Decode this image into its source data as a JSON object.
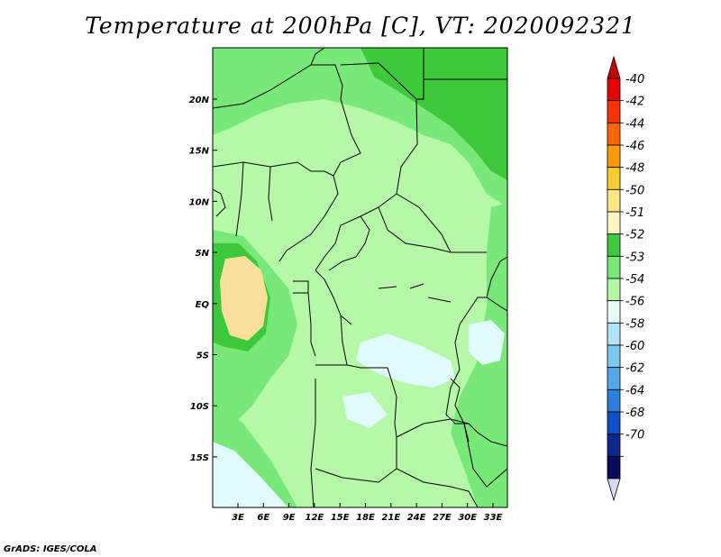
{
  "title": "Temperature at 200hPa [C], VT: 2020092321",
  "credit": "GrADS: IGES/COLA",
  "map": {
    "lat_labels": [
      "20N",
      "15N",
      "10N",
      "5N",
      "EQ",
      "5S",
      "10S",
      "15S"
    ],
    "lon_labels": [
      "3E",
      "6E",
      "9E",
      "12E",
      "15E",
      "18E",
      "21E",
      "24E",
      "27E",
      "30E",
      "33E"
    ],
    "colors": {
      "c52": "#3ec83c",
      "c53": "#78e878",
      "c54": "#b4f8a8",
      "c51": "#fae09a",
      "c56": "#e0fcfc",
      "border": "#000000"
    }
  },
  "colorbar": {
    "labels": [
      "-40",
      "-42",
      "-44",
      "-46",
      "-48",
      "-50",
      "-51",
      "-52",
      "-53",
      "-54",
      "-56",
      "-58",
      "-60",
      "-62",
      "-64",
      "-68",
      "-70"
    ],
    "colors": [
      "#e60000",
      "#ff3300",
      "#ff6600",
      "#ff9900",
      "#ffcc33",
      "#ffe680",
      "#fff8c0",
      "#3ec83c",
      "#78e878",
      "#b4f8a8",
      "#e8fcf8",
      "#b0e4f8",
      "#7ac8f0",
      "#50a8e8",
      "#2a80e0",
      "#1050c8",
      "#0a2890",
      "#0a0a5a"
    ],
    "top_arrow_color": "#c80000",
    "bottom_arrow_color": "#d8d8f8"
  }
}
